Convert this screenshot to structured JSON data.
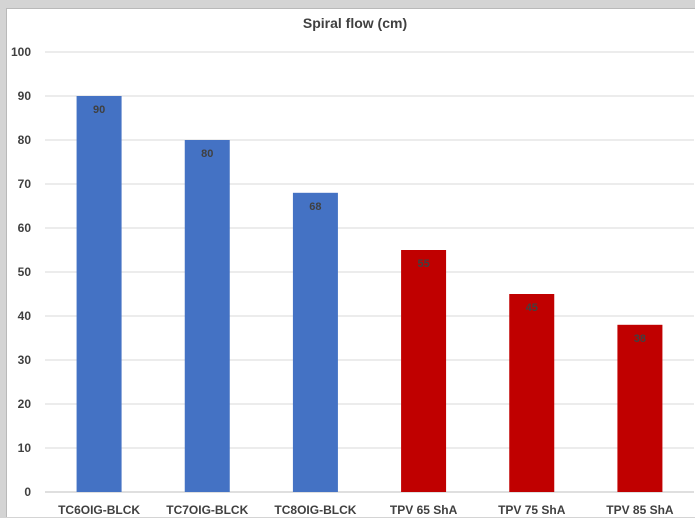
{
  "chart_data": {
    "type": "bar",
    "title": "Spiral flow (cm)",
    "xlabel": "",
    "ylabel": "",
    "categories": [
      "TC6OIG-BLCK",
      "TC7OIG-BLCK",
      "TC8OIG-BLCK",
      "TPV 65 ShA",
      "TPV 75 ShA",
      "TPV 85 ShA"
    ],
    "values": [
      90,
      80,
      68,
      55,
      45,
      38
    ],
    "bar_colors": [
      "#4472c4",
      "#4472c4",
      "#4472c4",
      "#c00000",
      "#c00000",
      "#c00000"
    ],
    "ylim": [
      0,
      100
    ],
    "yticks": [
      0,
      10,
      20,
      30,
      40,
      50,
      60,
      70,
      80,
      90,
      100
    ],
    "grid": true,
    "data_labels": true,
    "legend": "none"
  },
  "colors": {
    "blue_series": "#4472c4",
    "red_series": "#c00000",
    "text": "#404040",
    "grid": "#d9d9d9"
  }
}
